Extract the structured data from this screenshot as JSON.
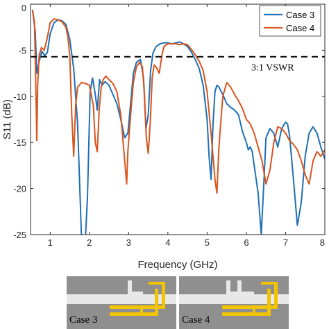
{
  "chart_data": {
    "type": "line",
    "xlabel": "Frequency (GHz)",
    "ylabel": "S11 (dB)",
    "xlim": [
      0.5,
      8
    ],
    "ylim": [
      -25,
      0
    ],
    "xticks": [
      1,
      2,
      3,
      4,
      5,
      6,
      7,
      8
    ],
    "yticks": [
      0,
      -5,
      -10,
      -15,
      -20,
      -25
    ],
    "grid": false,
    "legend_position": "top-right",
    "threshold": {
      "y": -5.7,
      "label": "3:1 VSWR",
      "style": "dashed"
    },
    "series": [
      {
        "name": "Case 3",
        "color": "#1f6fb4",
        "x": [
          0.55,
          0.62,
          0.66,
          0.72,
          0.79,
          0.86,
          0.93,
          1.0,
          1.1,
          1.2,
          1.3,
          1.4,
          1.5,
          1.6,
          1.7,
          1.8,
          1.88,
          1.95,
          2.02,
          2.08,
          2.15,
          2.2,
          2.26,
          2.32,
          2.4,
          2.5,
          2.6,
          2.7,
          2.8,
          2.9,
          2.98,
          3.05,
          3.12,
          3.2,
          3.3,
          3.38,
          3.44,
          3.5,
          3.56,
          3.62,
          3.7,
          3.8,
          3.9,
          4.0,
          4.1,
          4.2,
          4.3,
          4.4,
          4.5,
          4.6,
          4.7,
          4.8,
          4.9,
          5.0,
          5.05,
          5.1,
          5.15,
          5.2,
          5.25,
          5.3,
          5.4,
          5.5,
          5.6,
          5.7,
          5.8,
          5.9,
          6.0,
          6.05,
          6.1,
          6.15,
          6.2,
          6.3,
          6.38,
          6.45,
          6.5,
          6.6,
          6.7,
          6.8,
          6.9,
          7.0,
          7.05,
          7.1,
          7.2,
          7.3,
          7.4,
          7.5,
          7.6,
          7.7,
          7.8,
          7.9,
          8.0
        ],
        "y": [
          -0.6,
          -3.0,
          -7.5,
          -6.2,
          -5.1,
          -5.6,
          -5.2,
          -3.2,
          -2.0,
          -1.7,
          -1.8,
          -2.2,
          -3.8,
          -7.0,
          -13.0,
          -25.5,
          -27.0,
          -21.0,
          -9.5,
          -8.0,
          -9.8,
          -11.5,
          -8.2,
          -8.8,
          -8.4,
          -8.8,
          -9.8,
          -10.8,
          -12.5,
          -14.5,
          -14.0,
          -10.8,
          -7.5,
          -6.3,
          -6.0,
          -8.0,
          -13.5,
          -12.0,
          -7.2,
          -5.3,
          -4.6,
          -4.3,
          -4.2,
          -4.2,
          -4.3,
          -4.2,
          -4.1,
          -4.3,
          -4.6,
          -5.2,
          -6.0,
          -7.0,
          -8.8,
          -12.5,
          -16.5,
          -19.0,
          -13.0,
          -9.5,
          -8.8,
          -9.0,
          -9.8,
          -10.8,
          -11.2,
          -11.5,
          -12.0,
          -13.8,
          -15.0,
          -15.8,
          -15.5,
          -16.0,
          -17.5,
          -20.5,
          -25.0,
          -19.0,
          -14.5,
          -13.5,
          -14.0,
          -15.5,
          -13.5,
          -12.8,
          -13.0,
          -14.2,
          -19.0,
          -24.0,
          -21.5,
          -16.5,
          -14.0,
          -13.3,
          -14.0,
          -15.5,
          -16.8
        ]
      },
      {
        "name": "Case 4",
        "color": "#d9541e",
        "x": [
          0.55,
          0.6,
          0.64,
          0.66,
          0.68,
          0.72,
          0.78,
          0.85,
          0.92,
          1.0,
          1.1,
          1.2,
          1.3,
          1.4,
          1.45,
          1.5,
          1.55,
          1.6,
          1.65,
          1.7,
          1.8,
          1.9,
          2.0,
          2.1,
          2.15,
          2.2,
          2.25,
          2.3,
          2.35,
          2.42,
          2.5,
          2.6,
          2.7,
          2.8,
          2.9,
          2.95,
          2.98,
          3.05,
          3.12,
          3.2,
          3.28,
          3.35,
          3.4,
          3.45,
          3.5,
          3.55,
          3.6,
          3.65,
          3.7,
          3.78,
          3.85,
          3.9,
          4.0,
          4.1,
          4.2,
          4.3,
          4.4,
          4.5,
          4.6,
          4.7,
          4.8,
          4.9,
          5.0,
          5.1,
          5.2,
          5.25,
          5.3,
          5.4,
          5.5,
          5.6,
          5.7,
          5.8,
          5.9,
          6.0,
          6.1,
          6.2,
          6.3,
          6.4,
          6.5,
          6.6,
          6.7,
          6.8,
          6.9,
          7.0,
          7.1,
          7.2,
          7.3,
          7.4,
          7.5,
          7.6,
          7.7,
          7.8,
          7.9,
          8.0
        ],
        "y": [
          -0.6,
          -2.0,
          -10.0,
          -14.8,
          -9.0,
          -5.5,
          -4.7,
          -5.0,
          -3.8,
          -2.0,
          -1.6,
          -1.7,
          -1.9,
          -2.5,
          -3.5,
          -5.5,
          -12.0,
          -16.5,
          -11.0,
          -9.0,
          -8.5,
          -8.6,
          -8.8,
          -11.0,
          -15.0,
          -16.0,
          -11.5,
          -9.0,
          -8.2,
          -7.8,
          -8.2,
          -8.6,
          -9.5,
          -12.0,
          -17.0,
          -19.5,
          -16.0,
          -12.0,
          -8.5,
          -6.8,
          -6.3,
          -6.8,
          -9.5,
          -14.5,
          -16.2,
          -13.0,
          -8.0,
          -6.6,
          -6.8,
          -7.5,
          -5.5,
          -4.6,
          -4.3,
          -4.3,
          -4.3,
          -4.4,
          -4.3,
          -4.4,
          -4.9,
          -5.5,
          -6.2,
          -7.2,
          -9.5,
          -14.0,
          -19.0,
          -20.5,
          -15.5,
          -10.0,
          -8.5,
          -9.0,
          -9.8,
          -10.5,
          -11.3,
          -12.5,
          -13.0,
          -14.0,
          -15.5,
          -17.0,
          -19.5,
          -18.0,
          -15.0,
          -13.3,
          -13.5,
          -14.0,
          -14.8,
          -15.2,
          -15.8,
          -17.0,
          -18.5,
          -19.5,
          -17.0,
          -16.0,
          -16.5,
          -15.8
        ]
      }
    ]
  },
  "insets": [
    {
      "label": "Case 3"
    },
    {
      "label": "Case 4"
    }
  ],
  "colors": {
    "dash": "#000000",
    "axis": "#262626",
    "substrate": "#8f8f8f",
    "feed": "#f2c300",
    "slot": "#e8e8e8"
  }
}
